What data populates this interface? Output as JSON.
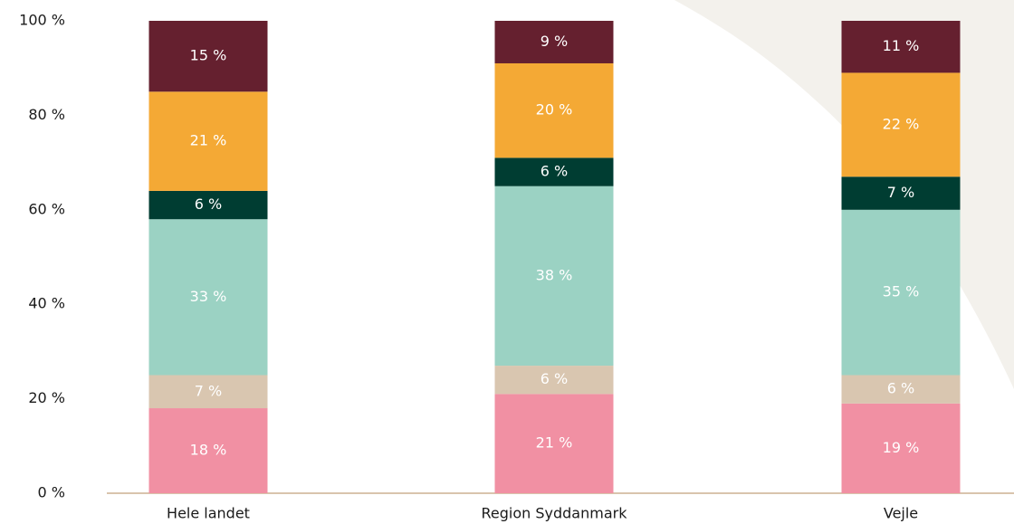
{
  "chart_data": {
    "type": "stacked_bar",
    "categories": [
      "Hele landet",
      "Region Syddanmark",
      "Vejle"
    ],
    "series": [
      {
        "color": "#f190a3",
        "values": [
          18,
          21,
          19
        ],
        "value_labels": [
          "18 %",
          "21 %",
          "19 %"
        ]
      },
      {
        "color": "#d9c6b0",
        "values": [
          7,
          6,
          6
        ],
        "value_labels": [
          "7 %",
          "6 %",
          "6 %"
        ]
      },
      {
        "color": "#9bd2c3",
        "values": [
          33,
          38,
          35
        ],
        "value_labels": [
          "33 %",
          "38 %",
          "35 %"
        ]
      },
      {
        "color": "#003d32",
        "values": [
          6,
          6,
          7
        ],
        "value_labels": [
          "6 %",
          "6 %",
          "7 %"
        ]
      },
      {
        "color": "#f4a935",
        "values": [
          21,
          20,
          22
        ],
        "value_labels": [
          "21 %",
          "20 %",
          "22 %"
        ]
      },
      {
        "color": "#65202f",
        "values": [
          15,
          9,
          11
        ],
        "value_labels": [
          "15 %",
          "9 %",
          "11 %"
        ]
      }
    ],
    "ylim": [
      0,
      100
    ],
    "yticks": [
      {
        "value": 0,
        "label": "0 %"
      },
      {
        "value": 20,
        "label": "20 %"
      },
      {
        "value": 40,
        "label": "40 %"
      },
      {
        "value": 60,
        "label": "60 %"
      },
      {
        "value": 80,
        "label": "80 %"
      },
      {
        "value": 100,
        "label": "100 %"
      }
    ]
  }
}
